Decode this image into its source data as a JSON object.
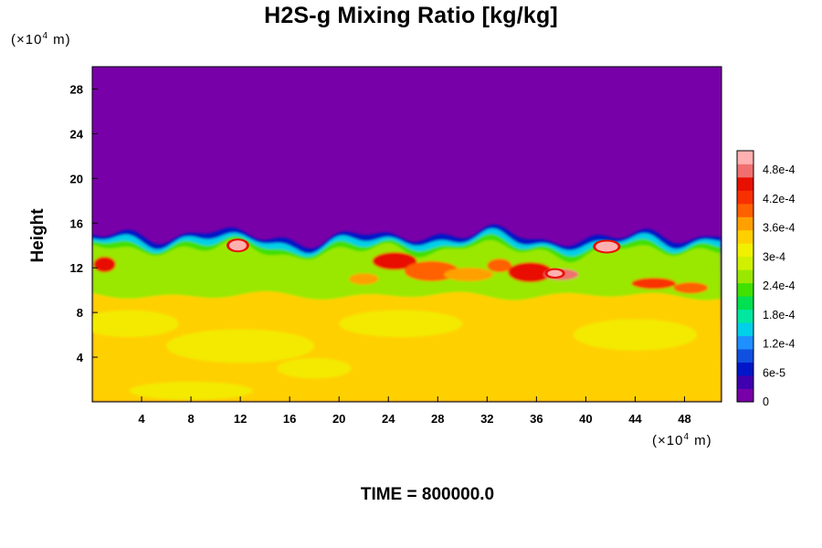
{
  "chart_data": {
    "type": "heatmap",
    "title": "H2S-g Mixing Ratio [kg/kg]",
    "ylabel": "Height",
    "xlabel": "",
    "x_unit": {
      "prefix": "(×10",
      "exp": "4",
      "suffix": " m)"
    },
    "y_unit": {
      "prefix": "(×10",
      "exp": "4",
      "suffix": " m)"
    },
    "footer": "TIME = 800000.0",
    "xlim": [
      0,
      51
    ],
    "ylim": [
      0,
      30
    ],
    "x_ticks": [
      4,
      8,
      12,
      16,
      20,
      24,
      28,
      32,
      36,
      40,
      44,
      48
    ],
    "y_ticks": [
      4,
      8,
      12,
      16,
      20,
      24,
      28
    ],
    "colorbar": {
      "range": [
        0,
        0.00052
      ],
      "labels": [
        "0",
        "6e-5",
        "1.2e-4",
        "1.8e-4",
        "2.4e-4",
        "3e-4",
        "3.6e-4",
        "4.2e-4",
        "4.8e-4"
      ],
      "label_values": [
        0,
        6e-05,
        0.00012,
        0.00018,
        0.00024,
        0.0003,
        0.00036,
        0.00042,
        0.00048
      ],
      "colors": [
        "#7800a8",
        "#3f00b0",
        "#0016c8",
        "#1050e0",
        "#1e90ff",
        "#00d0e8",
        "#00e8a0",
        "#00e050",
        "#40e000",
        "#9ae800",
        "#d0f000",
        "#f0f000",
        "#ffd000",
        "#ffa000",
        "#ff6000",
        "#f83000",
        "#e81000",
        "#f07070",
        "#ffb0b0"
      ]
    },
    "field_summary": {
      "background_value": 0,
      "lower_layer_value": 0.00034,
      "interface_height": 14.8,
      "mixing_zone": [
        9.5,
        15.5
      ]
    }
  }
}
